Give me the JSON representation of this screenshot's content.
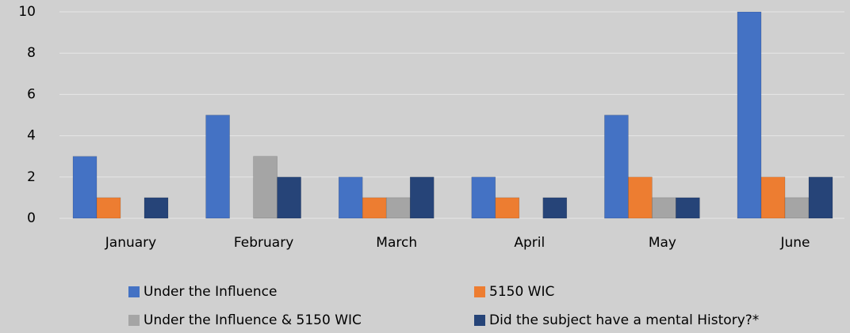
{
  "chart_data": {
    "type": "bar",
    "categories": [
      "January",
      "February",
      "March",
      "April",
      "May",
      "June"
    ],
    "series": [
      {
        "name": "Under the Influence",
        "color": "#4472c4",
        "values": [
          3,
          5,
          2,
          2,
          5,
          10
        ]
      },
      {
        "name": "5150 WIC",
        "color": "#ed7d31",
        "values": [
          1,
          0,
          1,
          1,
          2,
          2
        ]
      },
      {
        "name": "Under the Influence & 5150 WIC",
        "color": "#a5a5a5",
        "values": [
          0,
          3,
          1,
          0,
          1,
          1
        ]
      },
      {
        "name": "Did the subject have a mental History?*",
        "color": "#264478",
        "values": [
          1,
          2,
          2,
          1,
          1,
          2
        ]
      }
    ],
    "ylim": [
      0,
      10
    ],
    "yticks": [
      0,
      2,
      4,
      6,
      8,
      10
    ],
    "grid": true
  }
}
